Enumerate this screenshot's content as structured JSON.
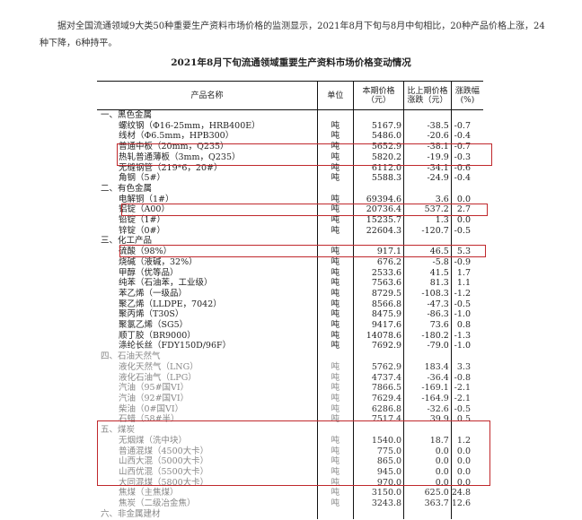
{
  "intro": "据对全国流通领域9大类50种重要生产资料市场价格的监测显示，2021年8月下旬与8月中旬相比，20种产品价格上涨，24种下降，6种持平。",
  "title": "2021年8月下旬流通领域重要生产资料市场价格变动情况",
  "headers": [
    "产品名称",
    "单位",
    "本期价格（元）",
    "比上期价格涨跌（元）",
    "涨跌幅(%)"
  ],
  "rows": [
    {
      "type": "sec",
      "name": "一、黑色金属"
    },
    {
      "name": "螺纹钢（Φ16-25mm，HRB400E）",
      "unit": "吨",
      "price": "5167.9",
      "chg": "-38.5",
      "pct": "-0.7"
    },
    {
      "name": "线材（Φ6.5mm，HPB300）",
      "unit": "吨",
      "price": "5486.0",
      "chg": "-20.6",
      "pct": "-0.4"
    },
    {
      "name": "普通中板（20mm，Q235）",
      "unit": "吨",
      "price": "5652.9",
      "chg": "-38.1",
      "pct": "-0.7"
    },
    {
      "name": "热轧普通薄板（3mm，Q235）",
      "unit": "吨",
      "price": "5820.2",
      "chg": "-19.9",
      "pct": "-0.3"
    },
    {
      "name": "无缝钢管（219*6，20#）",
      "unit": "吨",
      "price": "6112.0",
      "chg": "-34.1",
      "pct": "-0.6"
    },
    {
      "name": "角钢（5#）",
      "unit": "吨",
      "price": "5588.3",
      "chg": "-24.9",
      "pct": "-0.4"
    },
    {
      "type": "sec",
      "name": "二、有色金属"
    },
    {
      "name": "电解铜（1#）",
      "unit": "吨",
      "price": "69394.6",
      "chg": "3.6",
      "pct": "0.0"
    },
    {
      "name": "铝锭（A00）",
      "unit": "吨",
      "price": "20736.4",
      "chg": "537.2",
      "pct": "2.7"
    },
    {
      "name": "铅锭（1#）",
      "unit": "吨",
      "price": "15235.7",
      "chg": "1.3",
      "pct": "0.0"
    },
    {
      "name": "锌锭（0#）",
      "unit": "吨",
      "price": "22604.3",
      "chg": "-120.7",
      "pct": "-0.5"
    },
    {
      "type": "sec",
      "name": "三、化工产品"
    },
    {
      "name": "硫酸（98%）",
      "unit": "吨",
      "price": "917.1",
      "chg": "46.5",
      "pct": "5.3"
    },
    {
      "name": "烧碱（液碱，32%）",
      "unit": "吨",
      "price": "676.2",
      "chg": "-5.8",
      "pct": "-0.9"
    },
    {
      "name": "甲醇（优等品）",
      "unit": "吨",
      "price": "2533.6",
      "chg": "41.5",
      "pct": "1.7"
    },
    {
      "name": "纯苯（石油苯，工业级）",
      "unit": "吨",
      "price": "7563.6",
      "chg": "81.3",
      "pct": "1.1"
    },
    {
      "name": "苯乙烯（一级品）",
      "unit": "吨",
      "price": "8729.5",
      "chg": "-108.3",
      "pct": "-1.2"
    },
    {
      "name": "聚乙烯（LLDPE，7042）",
      "unit": "吨",
      "price": "8566.8",
      "chg": "-47.3",
      "pct": "-0.5"
    },
    {
      "name": "聚丙烯（T30S）",
      "unit": "吨",
      "price": "8475.9",
      "chg": "-86.3",
      "pct": "-1.0"
    },
    {
      "name": "聚氯乙烯（SG5）",
      "unit": "吨",
      "price": "9417.6",
      "chg": "73.6",
      "pct": "0.8"
    },
    {
      "name": "顺丁胶（BR9000）",
      "unit": "吨",
      "price": "14078.6",
      "chg": "-180.2",
      "pct": "-1.3"
    },
    {
      "name": "涤纶长丝（FDY150D/96F）",
      "unit": "吨",
      "price": "7692.9",
      "chg": "-79.0",
      "pct": "-1.0"
    },
    {
      "type": "sec",
      "gray": true,
      "name": "四、石油天然气"
    },
    {
      "gray": true,
      "name": "液化天然气（LNG）",
      "unit": "吨",
      "price": "5762.9",
      "chg": "183.4",
      "pct": "3.3"
    },
    {
      "gray": true,
      "name": "液化石油气（LPG）",
      "unit": "吨",
      "price": "4737.4",
      "chg": "-36.4",
      "pct": "-0.8"
    },
    {
      "gray": true,
      "name": "汽油（95#国VI）",
      "unit": "吨",
      "price": "7866.5",
      "chg": "-169.1",
      "pct": "-2.1"
    },
    {
      "gray": true,
      "name": "汽油（92#国VI）",
      "unit": "吨",
      "price": "7629.4",
      "chg": "-164.9",
      "pct": "-2.1"
    },
    {
      "gray": true,
      "name": "柴油（0#国VI）",
      "unit": "吨",
      "price": "6286.8",
      "chg": "-32.6",
      "pct": "-0.5"
    },
    {
      "gray": true,
      "name": "石蜡（58#半）",
      "unit": "吨",
      "price": "7517.4",
      "chg": "39.9",
      "pct": "0.5"
    },
    {
      "type": "sec",
      "gray": true,
      "name": "五、煤炭"
    },
    {
      "gray": true,
      "name": "无烟煤（洗中块）",
      "unit": "吨",
      "price": "1540.0",
      "chg": "18.7",
      "pct": "1.2"
    },
    {
      "gray": true,
      "name": "普通混煤（4500大卡）",
      "unit": "吨",
      "price": "775.0",
      "chg": "0.0",
      "pct": "0.0"
    },
    {
      "gray": true,
      "name": "山西大混（5000大卡）",
      "unit": "吨",
      "price": "865.0",
      "chg": "0.0",
      "pct": "0.0"
    },
    {
      "gray": true,
      "name": "山西优混（5500大卡）",
      "unit": "吨",
      "price": "945.0",
      "chg": "0.0",
      "pct": "0.0"
    },
    {
      "gray": true,
      "name": "大同混煤（5800大卡）",
      "unit": "吨",
      "price": "970.0",
      "chg": "0.0",
      "pct": "0.0"
    },
    {
      "gray": true,
      "name": "焦煤（主焦煤）",
      "unit": "吨",
      "price": "3150.0",
      "chg": "625.0",
      "pct": "24.8"
    },
    {
      "gray": true,
      "name": "焦炭（二级冶金焦）",
      "unit": "吨",
      "price": "3243.8",
      "chg": "363.7",
      "pct": "12.6"
    },
    {
      "type": "sec",
      "gray": true,
      "name": "六、非金属建材"
    }
  ],
  "highlight_color": "#c0282c"
}
